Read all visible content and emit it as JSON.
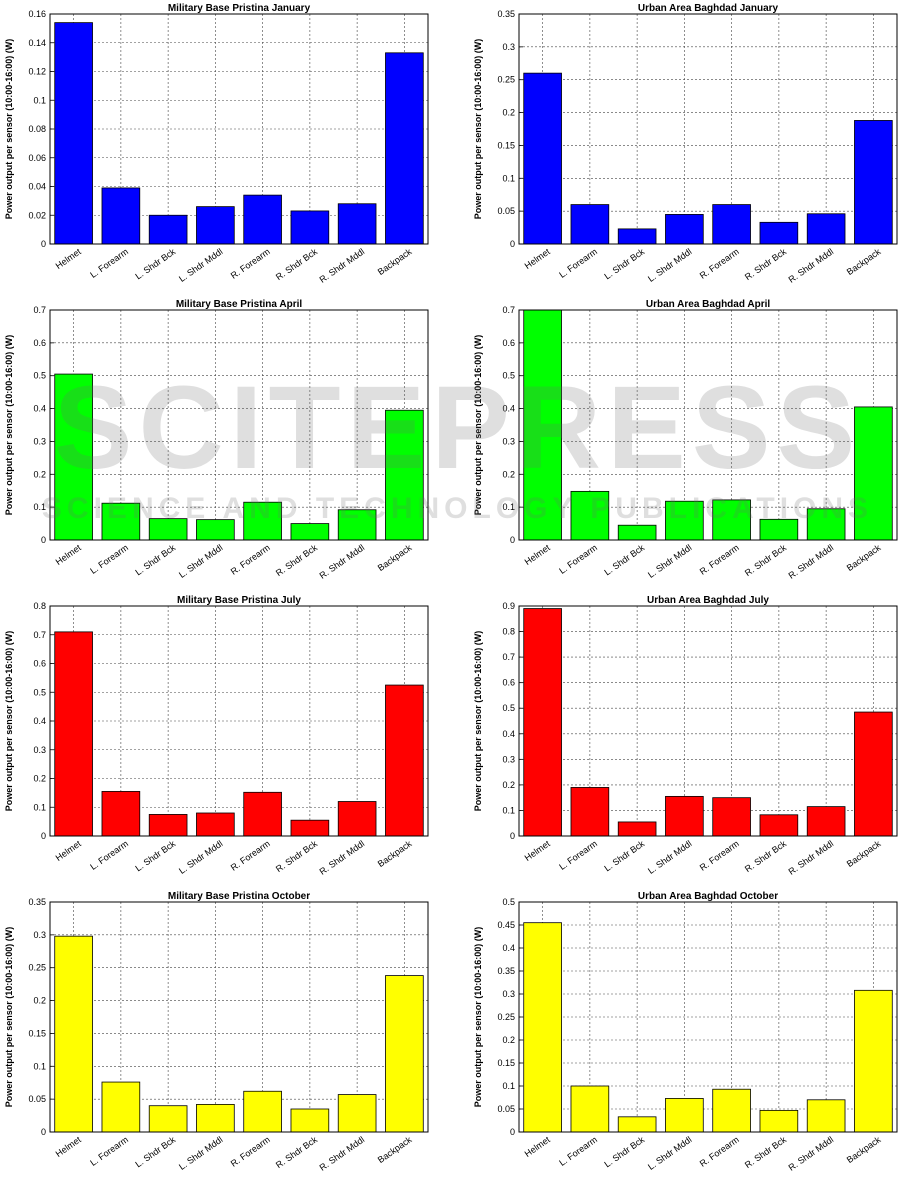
{
  "chart_data": [
    {
      "type": "bar",
      "title": "Military Base Pristina January",
      "ylabel": "Power output per sensor (10:00-16:00) (W)",
      "categories": [
        "Helmet",
        "L. Forearm",
        "L. Shdr Bck",
        "L. Shdr Mddl",
        "R. Forearm",
        "R. Shdr Bck",
        "R. Shdr Mddl",
        "Backpack"
      ],
      "values": [
        0.154,
        0.039,
        0.02,
        0.026,
        0.034,
        0.023,
        0.028,
        0.133
      ],
      "ylim": [
        0,
        0.16
      ],
      "yticks": [
        "0",
        "0.02",
        "0.04",
        "0.06",
        "0.08",
        "0.1",
        "0.12",
        "0.14",
        "0.16"
      ],
      "color": "#0000ff",
      "grid": true
    },
    {
      "type": "bar",
      "title": "Urban Area Baghdad January",
      "ylabel": "Power output per sensor (10:00-16:00) (W)",
      "categories": [
        "Helmet",
        "L. Forearm",
        "L. Shdr Bck",
        "L. Shdr Mddl",
        "R. Forearm",
        "R. Shdr Bck",
        "R. Shdr Mddl",
        "Backpack"
      ],
      "values": [
        0.26,
        0.06,
        0.023,
        0.045,
        0.06,
        0.033,
        0.046,
        0.188
      ],
      "ylim": [
        0,
        0.35
      ],
      "yticks": [
        "0",
        "0.05",
        "0.1",
        "0.15",
        "0.2",
        "0.25",
        "0.3",
        "0.35"
      ],
      "color": "#0000ff",
      "grid": true
    },
    {
      "type": "bar",
      "title": "Military Base Pristina April",
      "ylabel": "Power output per sensor (10:00-16:00) (W)",
      "categories": [
        "Helmet",
        "L. Forearm",
        "L. Shdr Bck",
        "L. Shdr Mddl",
        "R. Forearm",
        "R. Shdr Bck",
        "R. Shdr Mddl",
        "Backpack"
      ],
      "values": [
        0.505,
        0.112,
        0.065,
        0.062,
        0.115,
        0.05,
        0.092,
        0.395
      ],
      "ylim": [
        0,
        0.7
      ],
      "yticks": [
        "0",
        "0.1",
        "0.2",
        "0.3",
        "0.4",
        "0.5",
        "0.6",
        "0.7"
      ],
      "color": "#00ff00",
      "grid": true
    },
    {
      "type": "bar",
      "title": "Urban Area Baghdad April",
      "ylabel": "Power output per sensor (10:00-16:00) (W)",
      "categories": [
        "Helmet",
        "L. Forearm",
        "L. Shdr Bck",
        "L. Shdr Mddl",
        "R. Forearm",
        "R. Shdr Bck",
        "R. Shdr Mddl",
        "Backpack"
      ],
      "values": [
        0.7,
        0.148,
        0.045,
        0.118,
        0.122,
        0.063,
        0.095,
        0.405
      ],
      "ylim": [
        0,
        0.7
      ],
      "yticks": [
        "0",
        "0.1",
        "0.2",
        "0.3",
        "0.4",
        "0.5",
        "0.6",
        "0.7"
      ],
      "color": "#00ff00",
      "grid": true
    },
    {
      "type": "bar",
      "title": "Military Base Pristina July",
      "ylabel": "Power output per sensor (10:00-16:00) (W)",
      "categories": [
        "Helmet",
        "L. Forearm",
        "L. Shdr Bck",
        "L. Shdr Mddl",
        "R. Forearm",
        "R. Shdr Bck",
        "R. Shdr Mddl",
        "Backpack"
      ],
      "values": [
        0.71,
        0.155,
        0.075,
        0.08,
        0.152,
        0.055,
        0.12,
        0.525
      ],
      "ylim": [
        0,
        0.8
      ],
      "yticks": [
        "0",
        "0.1",
        "0.2",
        "0.3",
        "0.4",
        "0.5",
        "0.6",
        "0.7",
        "0.8"
      ],
      "color": "#ff0000",
      "grid": true
    },
    {
      "type": "bar",
      "title": "Urban Area Baghdad July",
      "ylabel": "Power output per sensor (10:00-16:00) (W)",
      "categories": [
        "Helmet",
        "L. Forearm",
        "L. Shdr Bck",
        "L. Shdr Mddl",
        "R. Forearm",
        "R. Shdr Bck",
        "R. Shdr Mddl",
        "Backpack"
      ],
      "values": [
        0.89,
        0.19,
        0.055,
        0.155,
        0.15,
        0.083,
        0.115,
        0.485
      ],
      "ylim": [
        0,
        0.9
      ],
      "yticks": [
        "0",
        "0.1",
        "0.2",
        "0.3",
        "0.4",
        "0.5",
        "0.6",
        "0.7",
        "0.8",
        "0.9"
      ],
      "color": "#ff0000",
      "grid": true
    },
    {
      "type": "bar",
      "title": "Military Base Pristina October",
      "ylabel": "Power output per sensor (10:00-16:00) (W)",
      "categories": [
        "Helmet",
        "L. Forearm",
        "L. Shdr Bck",
        "L. Shdr Mddl",
        "R. Forearm",
        "R. Shdr Bck",
        "R. Shdr Mddl",
        "Backpack"
      ],
      "values": [
        0.298,
        0.076,
        0.04,
        0.042,
        0.062,
        0.035,
        0.057,
        0.238
      ],
      "ylim": [
        0,
        0.35
      ],
      "yticks": [
        "0",
        "0.05",
        "0.1",
        "0.15",
        "0.2",
        "0.25",
        "0.3",
        "0.35"
      ],
      "color": "#ffff00",
      "grid": true
    },
    {
      "type": "bar",
      "title": "Urban Area Baghdad October",
      "ylabel": "Power output per sensor (10:00-16:00) (W)",
      "categories": [
        "Helmet",
        "L. Forearm",
        "L. Shdr Bck",
        "L. Shdr Mddl",
        "R. Forearm",
        "R. Shdr Bck",
        "R. Shdr Mddl",
        "Backpack"
      ],
      "values": [
        0.455,
        0.1,
        0.033,
        0.073,
        0.093,
        0.047,
        0.07,
        0.308
      ],
      "ylim": [
        0,
        0.5
      ],
      "yticks": [
        "0",
        "0.05",
        "0.1",
        "0.15",
        "0.2",
        "0.25",
        "0.3",
        "0.35",
        "0.4",
        "0.45",
        "0.5"
      ],
      "color": "#ffff00",
      "grid": true
    }
  ],
  "watermark": {
    "main_text": "SCITEPRESS",
    "sub_text": "SCIENCE AND TECHNOLOGY PUBLICATIONS",
    "color": "#6e6e6e"
  }
}
